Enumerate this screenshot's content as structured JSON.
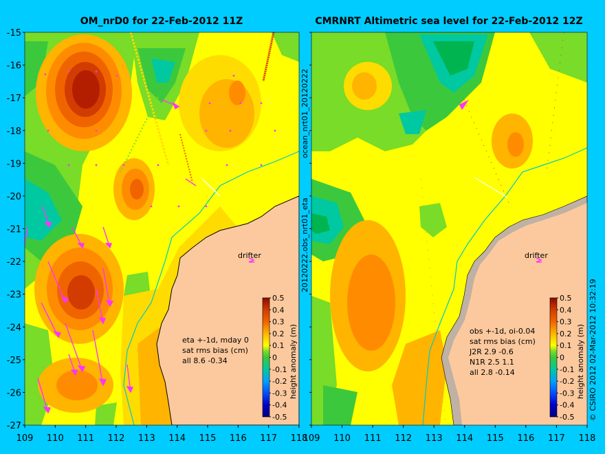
{
  "left_panel": {
    "title": "OM_nrD0 for 22-Feb-2012 11Z",
    "drifter_label": "drifter",
    "info_lines": [
      "eta +-1d, mday 0",
      "sat rms bias (cm)",
      "all 8.6 -0.34"
    ],
    "side_label": "ocean_nrt01_20120222"
  },
  "right_panel": {
    "title": "CMRNRT Altimetric sea level  for 22-Feb-2012 12Z",
    "drifter_label": "drifter",
    "info_lines": [
      "obs +-1d, oi-0.04",
      "sat rms bias (cm)",
      "J2R   2.9 -0.6",
      "N1R   2.5 1.1",
      "all 2.8 -0.14"
    ],
    "side_label": "20120222.obs_nrt01_eta"
  },
  "axes": {
    "x_ticks": [
      "109",
      "110",
      "111",
      "112",
      "113",
      "114",
      "115",
      "116",
      "117",
      "118"
    ],
    "y_ticks": [
      "-15",
      "-16",
      "-17",
      "-18",
      "-19",
      "-20",
      "-21",
      "-22",
      "-23",
      "-24",
      "-25",
      "-26",
      "-27"
    ],
    "lon_range": [
      109,
      118
    ],
    "lat_range": [
      -27,
      -15
    ]
  },
  "colorbar": {
    "label": "height anomaly (m)",
    "ticks": [
      "0.5",
      "0.4",
      "0.3",
      "0.2",
      "0.1",
      "0",
      "-0.1",
      "-0.2",
      "-0.3",
      "-0.4",
      "-0.5"
    ],
    "range": [
      -0.5,
      0.5
    ]
  },
  "footer": {
    "credit": "© CSIRO 2012  02-Mar-2012 10:32:19"
  },
  "colors": {
    "background": "#00ccff",
    "land": "#fcc99e",
    "land_outline": "#000000",
    "vectors": "#ff33ff",
    "isobath": "#00c8c8",
    "palette": [
      "#000080",
      "#0000c8",
      "#0050ff",
      "#00a0ff",
      "#00dcff",
      "#00c8a0",
      "#00b450",
      "#3cc83c",
      "#78dc28",
      "#c8f000",
      "#ffff00",
      "#ffdc00",
      "#ffb400",
      "#ff8c00",
      "#f06400",
      "#d23c00",
      "#b41e00",
      "#8c0a00"
    ]
  }
}
